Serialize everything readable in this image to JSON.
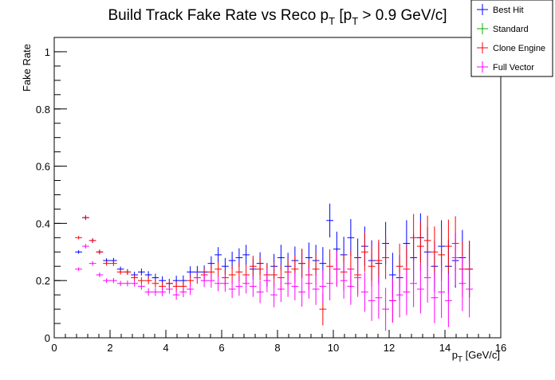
{
  "chart_data": {
    "type": "scatter",
    "title_main": "Build Track Fake Rate vs Reco p",
    "title_sub1": "T",
    "title_mid": " [p",
    "title_sub2": "T",
    "title_end": " > 0.9 GeV/c]",
    "xlabel_main": "p",
    "xlabel_sub": "T",
    "xlabel_end": " [GeV/c]",
    "ylabel": "Fake Rate",
    "xlim": [
      0,
      16
    ],
    "ylim": [
      0,
      1.05
    ],
    "xticks": [
      {
        "v": 0,
        "l": "0"
      },
      {
        "v": 2,
        "l": "2"
      },
      {
        "v": 4,
        "l": "4"
      },
      {
        "v": 6,
        "l": "6"
      },
      {
        "v": 8,
        "l": "8"
      },
      {
        "v": 10,
        "l": "10"
      },
      {
        "v": 12,
        "l": "12"
      },
      {
        "v": 14,
        "l": "14"
      },
      {
        "v": 16,
        "l": "16"
      }
    ],
    "yticks": [
      {
        "v": 0,
        "l": "0"
      },
      {
        "v": 0.2,
        "l": "0.2"
      },
      {
        "v": 0.4,
        "l": "0.4"
      },
      {
        "v": 0.6,
        "l": "0.6"
      },
      {
        "v": 0.8,
        "l": "0.8"
      },
      {
        "v": 1,
        "l": "1"
      }
    ],
    "legend_position": "top-right",
    "series": [
      {
        "name": "Best Hit",
        "color": "#0000ff",
        "x": [
          0.875,
          1.125,
          1.375,
          1.625,
          1.875,
          2.125,
          2.375,
          2.625,
          2.875,
          3.125,
          3.375,
          3.625,
          3.875,
          4.125,
          4.375,
          4.625,
          4.875,
          5.125,
          5.375,
          5.625,
          5.875,
          6.125,
          6.375,
          6.625,
          6.875,
          7.125,
          7.375,
          7.625,
          7.875,
          8.125,
          8.375,
          8.625,
          8.875,
          9.125,
          9.375,
          9.625,
          9.875,
          10.125,
          10.375,
          10.625,
          10.875,
          11.125,
          11.375,
          11.625,
          11.875,
          12.125,
          12.375,
          12.625,
          12.875,
          13.125,
          13.375,
          13.625,
          13.875,
          14.125,
          14.375,
          14.625,
          14.875
        ],
        "y": [
          0.3,
          0.42,
          0.34,
          0.3,
          0.27,
          0.27,
          0.24,
          0.23,
          0.22,
          0.23,
          0.22,
          0.21,
          0.2,
          0.19,
          0.2,
          0.2,
          0.23,
          0.23,
          0.23,
          0.26,
          0.29,
          0.25,
          0.27,
          0.28,
          0.29,
          0.24,
          0.26,
          0.22,
          0.25,
          0.28,
          0.25,
          0.27,
          0.26,
          0.28,
          0.27,
          0.26,
          0.41,
          0.31,
          0.29,
          0.35,
          0.28,
          0.32,
          0.27,
          0.26,
          0.33,
          0.22,
          0.21,
          0.33,
          0.28,
          0.35,
          0.3,
          0.25,
          0.32,
          0.25,
          0.27,
          0.28,
          0.24
        ],
        "err": [
          0.006,
          0.008,
          0.008,
          0.008,
          0.008,
          0.009,
          0.009,
          0.01,
          0.011,
          0.012,
          0.013,
          0.014,
          0.015,
          0.016,
          0.017,
          0.018,
          0.02,
          0.021,
          0.023,
          0.025,
          0.027,
          0.029,
          0.031,
          0.033,
          0.035,
          0.037,
          0.039,
          0.041,
          0.043,
          0.045,
          0.047,
          0.049,
          0.051,
          0.053,
          0.055,
          0.057,
          0.059,
          0.061,
          0.063,
          0.065,
          0.067,
          0.069,
          0.071,
          0.073,
          0.075,
          0.077,
          0.079,
          0.081,
          0.083,
          0.085,
          0.087,
          0.089,
          0.091,
          0.093,
          0.095,
          0.097,
          0.099
        ]
      },
      {
        "name": "Standard",
        "color": "#00b000",
        "x": [],
        "y": [],
        "err": []
      },
      {
        "name": "Clone Engine",
        "color": "#ff0000",
        "x": [
          0.875,
          1.125,
          1.375,
          1.625,
          1.875,
          2.125,
          2.375,
          2.625,
          2.875,
          3.125,
          3.375,
          3.625,
          3.875,
          4.125,
          4.375,
          4.625,
          4.875,
          5.125,
          5.375,
          5.625,
          5.875,
          6.125,
          6.375,
          6.625,
          6.875,
          7.125,
          7.375,
          7.625,
          7.875,
          8.125,
          8.375,
          8.625,
          8.875,
          9.125,
          9.375,
          9.625,
          9.875,
          10.125,
          10.375,
          10.625,
          10.875,
          11.125,
          11.375,
          11.625,
          11.875,
          12.125,
          12.375,
          12.625,
          12.875,
          13.125,
          13.375,
          13.625,
          13.875,
          14.125,
          14.375,
          14.625,
          14.875
        ],
        "y": [
          0.35,
          0.42,
          0.34,
          0.3,
          0.26,
          0.26,
          0.23,
          0.23,
          0.21,
          0.2,
          0.2,
          0.19,
          0.18,
          0.19,
          0.18,
          0.18,
          0.2,
          0.21,
          0.22,
          0.23,
          0.24,
          0.21,
          0.22,
          0.23,
          0.22,
          0.25,
          0.24,
          0.22,
          0.22,
          0.21,
          0.23,
          0.24,
          0.26,
          0.22,
          0.24,
          0.1,
          0.25,
          0.24,
          0.23,
          0.24,
          0.22,
          0.3,
          0.25,
          0.27,
          0.28,
          0.13,
          0.25,
          0.24,
          0.35,
          0.32,
          0.34,
          0.3,
          0.29,
          0.32,
          0.33,
          0.24,
          0.24
        ],
        "err": [
          0.006,
          0.008,
          0.008,
          0.008,
          0.008,
          0.009,
          0.009,
          0.01,
          0.011,
          0.012,
          0.013,
          0.014,
          0.015,
          0.016,
          0.017,
          0.018,
          0.02,
          0.021,
          0.023,
          0.025,
          0.027,
          0.029,
          0.031,
          0.033,
          0.035,
          0.037,
          0.039,
          0.041,
          0.043,
          0.045,
          0.047,
          0.049,
          0.051,
          0.053,
          0.055,
          0.057,
          0.059,
          0.061,
          0.063,
          0.065,
          0.067,
          0.069,
          0.071,
          0.073,
          0.075,
          0.077,
          0.079,
          0.081,
          0.083,
          0.085,
          0.087,
          0.089,
          0.091,
          0.093,
          0.095,
          0.097,
          0.099
        ]
      },
      {
        "name": "Full Vector",
        "color": "#ff00ff",
        "x": [
          0.875,
          1.125,
          1.375,
          1.625,
          1.875,
          2.125,
          2.375,
          2.625,
          2.875,
          3.125,
          3.375,
          3.625,
          3.875,
          4.125,
          4.375,
          4.625,
          4.875,
          5.125,
          5.375,
          5.625,
          5.875,
          6.125,
          6.375,
          6.625,
          6.875,
          7.125,
          7.375,
          7.625,
          7.875,
          8.125,
          8.375,
          8.625,
          8.875,
          9.125,
          9.375,
          9.625,
          9.875,
          10.125,
          10.375,
          10.625,
          10.875,
          11.125,
          11.375,
          11.625,
          11.875,
          12.125,
          12.375,
          12.625,
          12.875,
          13.125,
          13.375,
          13.625,
          13.875,
          14.125,
          14.375,
          14.625,
          14.875
        ],
        "y": [
          0.24,
          0.32,
          0.26,
          0.22,
          0.2,
          0.2,
          0.19,
          0.19,
          0.19,
          0.18,
          0.16,
          0.16,
          0.16,
          0.17,
          0.15,
          0.16,
          0.17,
          0.21,
          0.2,
          0.2,
          0.19,
          0.19,
          0.17,
          0.18,
          0.19,
          0.18,
          0.16,
          0.2,
          0.15,
          0.17,
          0.19,
          0.18,
          0.16,
          0.19,
          0.17,
          0.18,
          0.19,
          0.24,
          0.2,
          0.18,
          0.21,
          0.16,
          0.13,
          0.14,
          0.1,
          0.13,
          0.15,
          0.16,
          0.19,
          0.17,
          0.21,
          0.14,
          0.16,
          0.13,
          0.28,
          0.19,
          0.17
        ],
        "err": [
          0.006,
          0.008,
          0.008,
          0.008,
          0.008,
          0.009,
          0.009,
          0.01,
          0.011,
          0.012,
          0.013,
          0.014,
          0.015,
          0.016,
          0.017,
          0.018,
          0.02,
          0.021,
          0.023,
          0.025,
          0.027,
          0.029,
          0.031,
          0.033,
          0.035,
          0.037,
          0.039,
          0.041,
          0.043,
          0.045,
          0.047,
          0.049,
          0.051,
          0.053,
          0.055,
          0.057,
          0.059,
          0.061,
          0.063,
          0.065,
          0.067,
          0.069,
          0.071,
          0.073,
          0.075,
          0.077,
          0.079,
          0.081,
          0.083,
          0.085,
          0.087,
          0.089,
          0.091,
          0.093,
          0.095,
          0.097,
          0.099
        ]
      }
    ]
  }
}
